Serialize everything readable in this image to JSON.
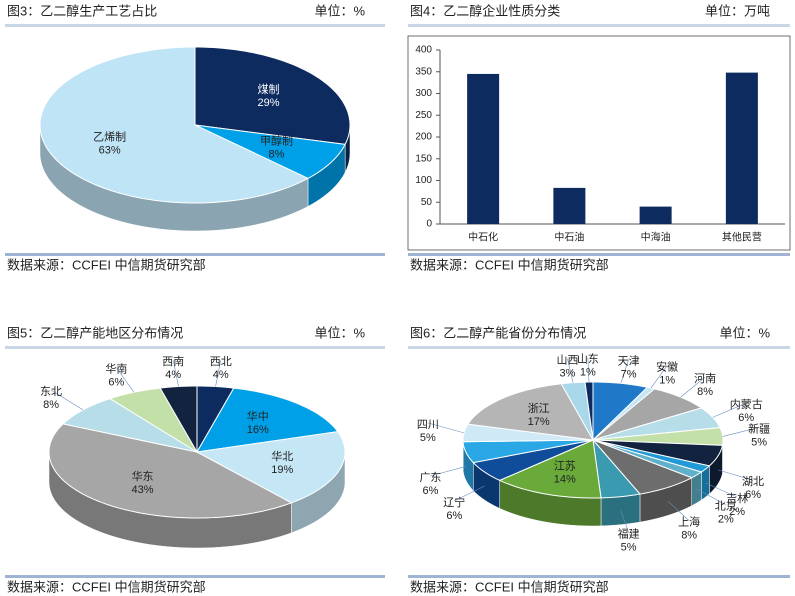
{
  "chart_data": [
    {
      "type": "pie",
      "title": "图3：乙二醇生产工艺占比",
      "unit": "单位：%",
      "source": "数据来源：CCFEI 中信期货研究部",
      "categories": [
        "煤制",
        "甲醇制",
        "乙烯制"
      ],
      "values": [
        29,
        8,
        63
      ],
      "value_labels": [
        "29%",
        "8%",
        "63%"
      ],
      "colors": [
        "#0d2b5e",
        "#00a0e9",
        "#bfe4f6"
      ]
    },
    {
      "type": "bar",
      "title": "图4：乙二醇企业性质分类",
      "unit": "单位：万吨",
      "source": "数据来源：CCFEI 中信期货研究部",
      "categories": [
        "中石化",
        "中石油",
        "中海油",
        "其他民营"
      ],
      "values": [
        345,
        83,
        40,
        348
      ],
      "color": "#0d2b5e",
      "ylim": [
        0,
        400
      ],
      "yticks": [
        0,
        50,
        100,
        150,
        200,
        250,
        300,
        350,
        400
      ],
      "grid": false
    },
    {
      "type": "pie",
      "title": "图5：乙二醇产能地区分布情况",
      "unit": "单位：%",
      "source": "数据来源：CCFEI 中信期货研究部",
      "categories": [
        "西北",
        "华中",
        "华北",
        "华东",
        "东北",
        "华南",
        "西南"
      ],
      "values": [
        4,
        16,
        19,
        43,
        8,
        6,
        4
      ],
      "value_labels": [
        "4%",
        "16%",
        "19%",
        "43%",
        "8%",
        "6%",
        "4%"
      ],
      "colors": [
        "#0d2b5e",
        "#00a0e9",
        "#c5e6f5",
        "#a6a6a6",
        "#b7dde8",
        "#c3e0a8",
        "#12233f"
      ]
    },
    {
      "type": "pie",
      "title": "图6：乙二醇产能省份分布情况",
      "unit": "单位：%",
      "source": "数据来源：CCFEI 中信期货研究部",
      "categories": [
        "天津",
        "安徽",
        "河南",
        "内蒙古",
        "新疆",
        "湖北",
        "吉林",
        "北京",
        "上海",
        "福建",
        "江苏",
        "辽宁",
        "广东",
        "四川",
        "浙江",
        "山西",
        "山东"
      ],
      "values": [
        7,
        1,
        8,
        6,
        5,
        6,
        2,
        2,
        8,
        5,
        14,
        6,
        6,
        5,
        17,
        3,
        1
      ],
      "value_labels": [
        "7%",
        "1%",
        "8%",
        "6%",
        "5%",
        "6%",
        "2%",
        "2%",
        "8%",
        "5%",
        "14%",
        "6%",
        "6%",
        "5%",
        "17%",
        "3%",
        "1%"
      ],
      "colors": [
        "#1f78c8",
        "#c5e6f5",
        "#a6a6a6",
        "#b7dde8",
        "#c3e0a8",
        "#12233f",
        "#1f9ad6",
        "#5fb0c8",
        "#6d6d6d",
        "#3a9bb0",
        "#6aaa3a",
        "#0f4c9a",
        "#2aa8e6",
        "#cfeaf6",
        "#b5b5b5",
        "#a9d8ea",
        "#0d2b5e"
      ]
    }
  ]
}
